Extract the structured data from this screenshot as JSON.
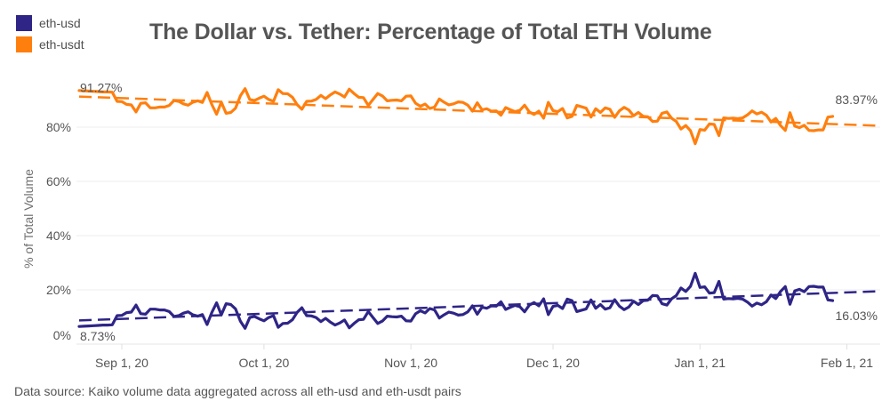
{
  "chart_data": {
    "type": "line",
    "title": "The Dollar vs. Tether: Percentage of Total ETH Volume",
    "xlabel": "",
    "ylabel": "% of Total Volume",
    "ylim": [
      0,
      100
    ],
    "y_ticks": [
      "0%",
      "20%",
      "40%",
      "60%",
      "80%"
    ],
    "y_tick_values": [
      0,
      20,
      40,
      60,
      80
    ],
    "x_ticks": [
      "Sep 1, 20",
      "Oct 1, 20",
      "Nov 1, 20",
      "Dec 1, 20",
      "Jan 1, 21",
      "Feb 1, 21"
    ],
    "x_tick_dates": [
      "2020-09-01",
      "2020-10-01",
      "2020-11-01",
      "2020-12-01",
      "2021-01-01",
      "2021-02-01"
    ],
    "x_start": "2020-08-23",
    "grid": true,
    "legend_position": "top-left",
    "series": [
      {
        "name": "eth-usd",
        "color": "#2e2587",
        "trend": {
          "start": 8.73,
          "end": 19.5,
          "start_label": "8.73%"
        },
        "end_label": "16.03%",
        "values": [
          6.5,
          6.6,
          6.7,
          6.8,
          6.9,
          7.0,
          7.0,
          7.1,
          10.5,
          10.6,
          11.6,
          11.8,
          14.4,
          11.2,
          11.0,
          12.9,
          12.9,
          12.6,
          12.6,
          12.0,
          10.2,
          10.5,
          11.4,
          11.9,
          10.8,
          10.3,
          10.9,
          7.2,
          11.7,
          15.2,
          10.8,
          14.9,
          14.6,
          13.0,
          8.5,
          5.8,
          9.8,
          10.2,
          9.3,
          8.6,
          9.8,
          10.5,
          6.2,
          7.6,
          7.7,
          9.0,
          11.7,
          13.4,
          10.5,
          10.4,
          9.8,
          8.3,
          9.5,
          8.1,
          7.0,
          7.8,
          8.9,
          6.0,
          7.6,
          9.0,
          9.1,
          12.0,
          9.8,
          7.6,
          8.5,
          10.3,
          10.1,
          10.0,
          10.3,
          8.6,
          8.5,
          11.2,
          12.3,
          11.5,
          13.1,
          12.6,
          9.6,
          10.8,
          11.8,
          11.4,
          10.7,
          10.9,
          11.9,
          14.1,
          11.0,
          13.6,
          13.2,
          14.1,
          14.0,
          15.6,
          12.8,
          13.6,
          14.3,
          13.8,
          11.9,
          14.4,
          15.3,
          14.1,
          16.7,
          10.9,
          13.9,
          14.3,
          13.1,
          16.6,
          16.0,
          12.0,
          12.5,
          13.0,
          16.3,
          13.2,
          14.6,
          12.9,
          13.4,
          16.4,
          14.0,
          12.7,
          13.7,
          15.8,
          14.6,
          16.0,
          16.2,
          17.9,
          17.8,
          14.9,
          14.4,
          16.7,
          17.9,
          20.7,
          19.4,
          21.3,
          26.1,
          20.9,
          21.1,
          18.8,
          19.0,
          23.1,
          16.6,
          16.8,
          16.7,
          16.9,
          16.6,
          15.5,
          14.0,
          15.1,
          14.5,
          15.6,
          18.1,
          16.8,
          19.4,
          21.2,
          14.7,
          19.6,
          20.2,
          19.3,
          21.2,
          21.3,
          21.0,
          21.0,
          16.3,
          16.03
        ]
      },
      {
        "name": "eth-usdt",
        "color": "#ff7f0e",
        "trend": {
          "start": 91.27,
          "end": 80.5,
          "start_label": "91.27%"
        },
        "end_label": "83.97%",
        "values": "complement of eth-usd (100 - eth-usd)"
      }
    ]
  },
  "legend": {
    "items": [
      {
        "label": "eth-usd",
        "color": "#2e2587"
      },
      {
        "label": "eth-usdt",
        "color": "#ff7f0e"
      }
    ]
  },
  "footer": {
    "source": "Data source: Kaiko volume data aggregated across all eth-usd and eth-usdt pairs"
  }
}
